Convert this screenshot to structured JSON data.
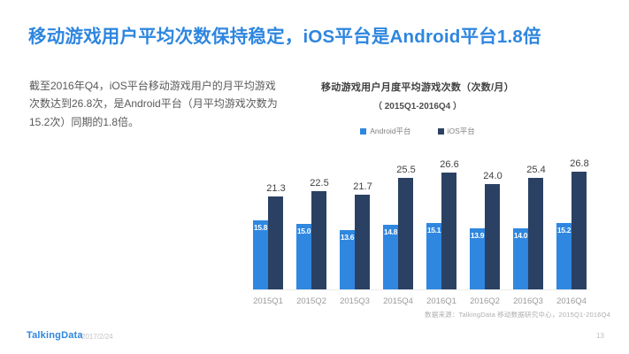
{
  "slide": {
    "title": "移动游戏用户平均次数保持稳定，iOS平台是Android平台1.8倍",
    "body_text": "截至2016年Q4，iOS平台移动游戏用户的月平均游戏次数达到26.8次，是Android平台（月平均游戏次数为15.2次）同期的1.8倍。",
    "footer": {
      "logo": "TalkingData",
      "date": "2017/2/24",
      "page": "13"
    }
  },
  "colors": {
    "accent_blue": "#2E86DF",
    "android_bar": "#2F87E0",
    "ios_bar": "#2B4164"
  },
  "chart_data": {
    "type": "bar",
    "title": "移动游戏用户月度平均游戏次数（次数/月）",
    "subtitle": "（ 2015Q1-2016Q4 ）",
    "categories": [
      "2015Q1",
      "2015Q2",
      "2015Q3",
      "2015Q4",
      "2016Q1",
      "2016Q2",
      "2016Q3",
      "2016Q4"
    ],
    "series": [
      {
        "name": "Android平台",
        "color": "#2F87E0",
        "values": [
          15.8,
          15.0,
          13.6,
          14.8,
          15.1,
          13.9,
          14.0,
          15.2
        ]
      },
      {
        "name": "iOS平台",
        "color": "#2B4164",
        "values": [
          21.3,
          22.5,
          21.7,
          25.5,
          26.6,
          24.0,
          25.4,
          26.8
        ]
      }
    ],
    "ylim": [
      0,
      28
    ],
    "grid": false,
    "legend_position": "top",
    "value_labels": true,
    "source": "数据来源：TalkingData 移动数据研究中心，2015Q1-2016Q4"
  }
}
